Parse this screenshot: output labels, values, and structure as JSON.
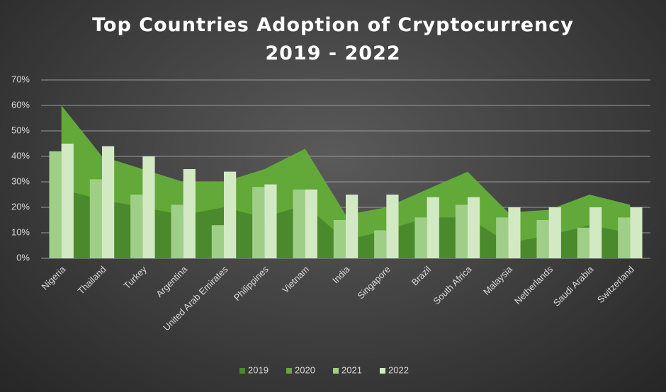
{
  "chart_data": {
    "type": "combo",
    "title": "Top Countries Adoption of Cryptocurrency 2019 - 2022",
    "categories": [
      "Nigeria",
      "Thailand",
      "Turkey",
      "Argentina",
      "United Arab Emirates",
      "Philippines",
      "Vietnam",
      "India",
      "Singapore",
      "Brazil",
      "South Africa",
      "Malaysia",
      "Netherlands",
      "Saudi Arabia",
      "Switzerland"
    ],
    "series": [
      {
        "name": "2019",
        "type": "area",
        "color": "#4b8a2c",
        "values": [
          27,
          23,
          20,
          17,
          20,
          16,
          21,
          7,
          11,
          16,
          16,
          6,
          9,
          13,
          10
        ]
      },
      {
        "name": "2020",
        "type": "area",
        "color": "#62a93a",
        "values": [
          60,
          40,
          35,
          30,
          30,
          35,
          43,
          17,
          20,
          27,
          34,
          18,
          19,
          25,
          21
        ]
      },
      {
        "name": "2021",
        "type": "bar",
        "color": "#9fcf86",
        "values": [
          42,
          31,
          25,
          21,
          13,
          28,
          27,
          15,
          11,
          16,
          21,
          16,
          15,
          12,
          16
        ]
      },
      {
        "name": "2022",
        "type": "bar",
        "color": "#d3e9c4",
        "values": [
          45,
          44,
          40,
          35,
          34,
          29,
          27,
          25,
          25,
          24,
          24,
          20,
          20,
          20,
          20
        ]
      }
    ],
    "ylim": [
      0,
      70
    ],
    "yticks": [
      {
        "value": 0,
        "label": "0%"
      },
      {
        "value": 10,
        "label": "10%"
      },
      {
        "value": 20,
        "label": "20%"
      },
      {
        "value": 30,
        "label": "30%"
      },
      {
        "value": 40,
        "label": "40%"
      },
      {
        "value": 50,
        "label": "50%"
      },
      {
        "value": 60,
        "label": "60%"
      },
      {
        "value": 70,
        "label": "70%"
      }
    ],
    "grid": true,
    "legend": "bottom"
  }
}
